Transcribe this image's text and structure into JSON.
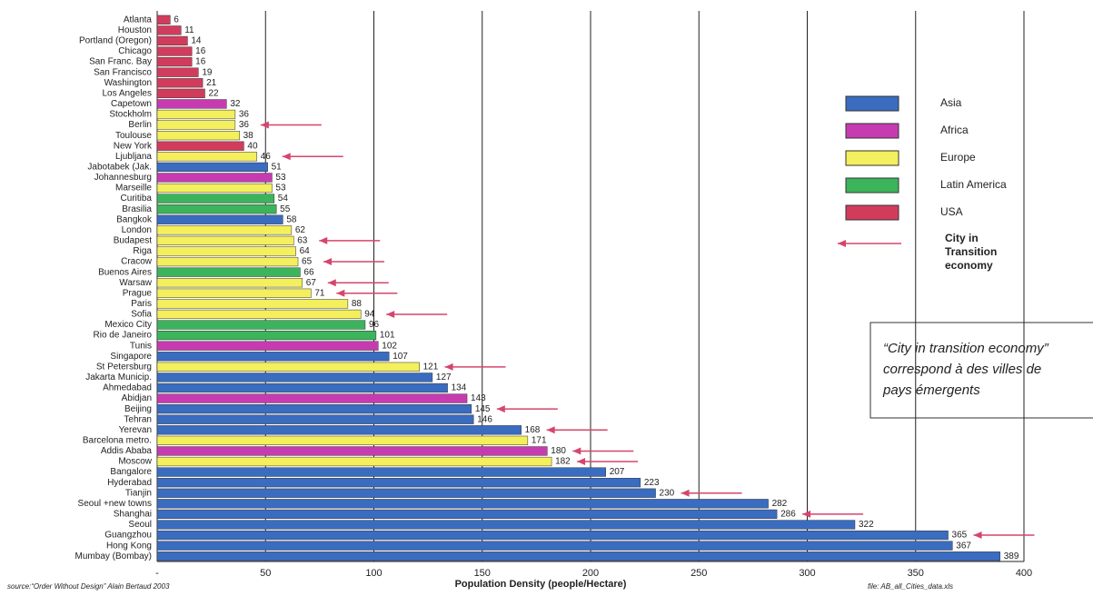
{
  "chart_data": {
    "type": "bar",
    "orientation": "horizontal",
    "categories": [
      "Atlanta",
      "Houston",
      "Portland (Oregon)",
      "Chicago",
      "San Franc. Bay",
      "San Francisco",
      "Washington",
      "Los Angeles",
      "Capetown",
      "Stockholm",
      "Berlin",
      "Toulouse",
      "New York",
      "Ljubljana",
      "Jabotabek (Jak.",
      "Johannesburg",
      "Marseille",
      "Curitiba",
      "Brasilia",
      "Bangkok",
      "London",
      "Budapest",
      "Riga",
      "Cracow",
      "Buenos Aires",
      "Warsaw",
      "Prague",
      "Paris",
      "Sofia",
      "Mexico City",
      "Rio de Janeiro",
      "Tunis",
      "Singapore",
      "St Petersburg",
      "Jakarta Municip.",
      "Ahmedabad",
      "Abidjan",
      "Beijing",
      "Tehran",
      "Yerevan",
      "Barcelona metro.",
      "Addis Ababa",
      "Moscow",
      "Bangalore",
      "Hyderabad",
      "Tianjin",
      "Seoul +new towns",
      "Shanghai",
      "Seoul",
      "Guangzhou",
      "Hong Kong",
      "Mumbay (Bombay)"
    ],
    "values": [
      6,
      11,
      14,
      16,
      16,
      19,
      21,
      22,
      32,
      36,
      36,
      38,
      40,
      46,
      51,
      53,
      53,
      54,
      55,
      58,
      62,
      63,
      64,
      65,
      66,
      67,
      71,
      88,
      94,
      96,
      101,
      102,
      107,
      121,
      127,
      134,
      143,
      145,
      146,
      168,
      171,
      180,
      182,
      207,
      223,
      230,
      282,
      286,
      322,
      365,
      367,
      389
    ],
    "groups": [
      "USA",
      "USA",
      "USA",
      "USA",
      "USA",
      "USA",
      "USA",
      "USA",
      "Africa",
      "Europe",
      "Europe",
      "Europe",
      "USA",
      "Europe",
      "Asia",
      "Africa",
      "Europe",
      "Latin America",
      "Latin America",
      "Asia",
      "Europe",
      "Europe",
      "Europe",
      "Europe",
      "Latin America",
      "Europe",
      "Europe",
      "Europe",
      "Europe",
      "Latin America",
      "Latin America",
      "Africa",
      "Asia",
      "Europe",
      "Asia",
      "Asia",
      "Africa",
      "Asia",
      "Asia",
      "Asia",
      "Europe",
      "Africa",
      "Europe",
      "Asia",
      "Asia",
      "Asia",
      "Asia",
      "Asia",
      "Asia",
      "Asia",
      "Asia",
      "Asia"
    ],
    "transition": [
      false,
      false,
      false,
      false,
      false,
      false,
      false,
      false,
      false,
      false,
      true,
      false,
      false,
      true,
      false,
      false,
      false,
      false,
      false,
      false,
      false,
      true,
      false,
      true,
      false,
      true,
      true,
      false,
      true,
      false,
      false,
      false,
      false,
      true,
      false,
      false,
      false,
      true,
      false,
      true,
      false,
      true,
      true,
      false,
      false,
      true,
      false,
      true,
      false,
      true,
      false,
      false
    ],
    "legend": [
      {
        "name": "Asia",
        "color": "#3a6cc0"
      },
      {
        "name": "Africa",
        "color": "#c63cb0"
      },
      {
        "name": "Europe",
        "color": "#f4ef5c"
      },
      {
        "name": "Latin America",
        "color": "#3cb45c"
      },
      {
        "name": "USA",
        "color": "#d23c5c"
      }
    ],
    "arrow_color": "#d6456c",
    "transition_label": [
      "City in",
      "Transition",
      "economy"
    ],
    "annotation": [
      "“City in transition economy”",
      "correspond à des villes de",
      "pays émergents"
    ],
    "x_label": "Population Density (people/Hectare)",
    "source": "source:“Order Without Design” Alain Bertaud 2003",
    "file": "file: AB_all_Cities_data.xls",
    "xlim": [
      0,
      400
    ],
    "xticks": [
      {
        "value": 0,
        "label": "-"
      },
      50,
      100,
      150,
      200,
      250,
      300,
      350,
      400
    ],
    "grid": true
  }
}
